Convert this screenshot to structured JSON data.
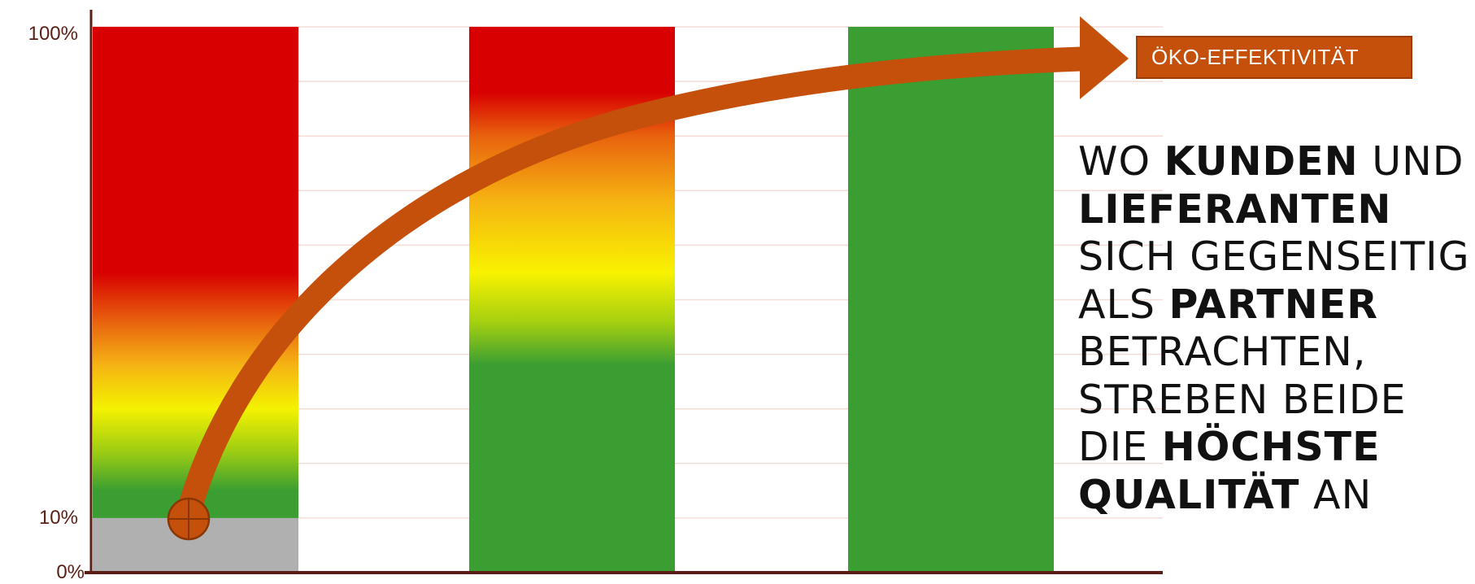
{
  "chart_data": {
    "type": "bar",
    "ylim": [
      0,
      100
    ],
    "y_ticks": [
      "0%",
      "10%",
      "100%"
    ],
    "grid": true,
    "bars": [
      {
        "value": 100,
        "base_segment": {
          "from": 0,
          "to": 10,
          "color": "#b0b0b0"
        },
        "gradient": [
          {
            "level": 10,
            "color": "#3a9e32"
          },
          {
            "level": 15,
            "color": "#3a9e32"
          },
          {
            "level": 22,
            "color": "#9bcc14"
          },
          {
            "level": 30,
            "color": "#f4f200"
          },
          {
            "level": 38,
            "color": "#f5b414"
          },
          {
            "level": 46,
            "color": "#e8620e"
          },
          {
            "level": 55,
            "color": "#d80000"
          },
          {
            "level": 100,
            "color": "#d80000"
          }
        ]
      },
      {
        "value": 100,
        "gradient": [
          {
            "level": 0,
            "color": "#3a9e32"
          },
          {
            "level": 38,
            "color": "#3a9e32"
          },
          {
            "level": 46,
            "color": "#a6d010"
          },
          {
            "level": 55,
            "color": "#f8f200"
          },
          {
            "level": 68,
            "color": "#f6b412"
          },
          {
            "level": 80,
            "color": "#e8620e"
          },
          {
            "level": 88,
            "color": "#d80000"
          },
          {
            "level": 100,
            "color": "#d80000"
          }
        ]
      },
      {
        "value": 100,
        "gradient": [
          {
            "level": 0,
            "color": "#3a9e32"
          },
          {
            "level": 100,
            "color": "#3a9e32"
          }
        ]
      }
    ],
    "arrow": {
      "label": "ÖKO-EFFEKTIVITÄT",
      "start_level": 10,
      "end_level": 95,
      "color": "#c4500b"
    }
  },
  "badge": {
    "label": "ÖKO-EFFEKTIVITÄT"
  },
  "statement": {
    "lines": [
      [
        {
          "text": "WO ",
          "bold": false
        },
        {
          "text": "KUNDEN",
          "bold": true
        },
        {
          "text": " UND",
          "bold": false
        }
      ],
      [
        {
          "text": "LIEFERANTEN",
          "bold": true
        }
      ],
      [
        {
          "text": "SICH GEGENSEITIG",
          "bold": false
        }
      ],
      [
        {
          "text": "ALS ",
          "bold": false
        },
        {
          "text": "PARTNER",
          "bold": true
        }
      ],
      [
        {
          "text": "BETRACHTEN,",
          "bold": false
        }
      ],
      [
        {
          "text": "STREBEN BEIDE",
          "bold": false
        }
      ],
      [
        {
          "text": "DIE ",
          "bold": false
        },
        {
          "text": "HÖCHSTE",
          "bold": true
        }
      ],
      [
        {
          "text": "QUALITÄT",
          "bold": true
        },
        {
          "text": " AN",
          "bold": false
        }
      ]
    ]
  },
  "colors": {
    "axis": "#5a1e14",
    "grid": "#f3dcd6",
    "arrow": "#c4500b",
    "arrow_stroke": "#8a3604"
  }
}
